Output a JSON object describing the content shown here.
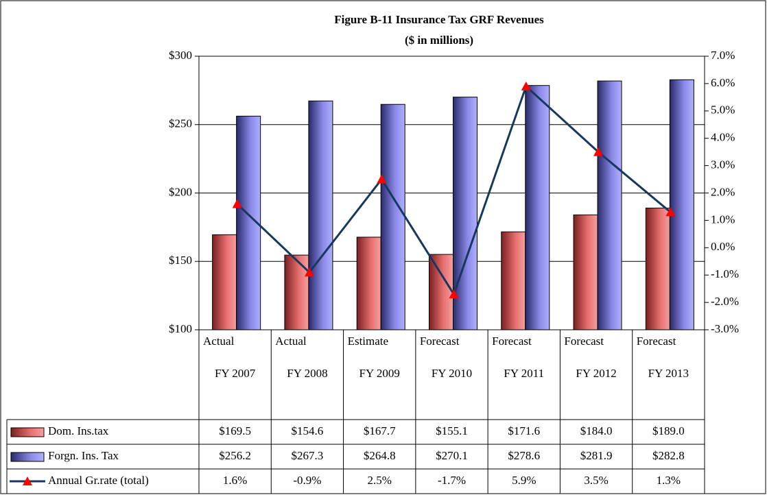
{
  "chart_data": {
    "type": "bar-line",
    "title": "Figure B-11 Insurance Tax GRF Revenues",
    "subtitle": "($ in millions)",
    "categories": [
      [
        "Actual",
        "FY 2007"
      ],
      [
        "Actual",
        "FY 2008"
      ],
      [
        "Estimate",
        "FY 2009"
      ],
      [
        "Forecast",
        "FY 2010"
      ],
      [
        "Forecast",
        "FY 2011"
      ],
      [
        "Forecast",
        "FY 2012"
      ],
      [
        "Forecast",
        "FY 2013"
      ]
    ],
    "series": [
      {
        "name": "Dom. Ins.tax",
        "color": "#e87070",
        "values": [
          169.5,
          154.6,
          167.7,
          155.1,
          171.6,
          184.0,
          189.0
        ],
        "value_labels": [
          "$169.5",
          "$154.6",
          "$167.7",
          "$155.1",
          "$171.6",
          "$184.0",
          "$189.0"
        ]
      },
      {
        "name": "Forgn. Ins. Tax",
        "color": "#8a8ae8",
        "values": [
          256.2,
          267.3,
          264.8,
          270.1,
          278.6,
          281.9,
          282.8
        ],
        "value_labels": [
          "$256.2",
          "$267.3",
          "$264.8",
          "$270.1",
          "$278.6",
          "$281.9",
          "$282.8"
        ]
      },
      {
        "name": "Annual Gr.rate (total)",
        "color": "#17375e",
        "marker_color": "#ff0000",
        "axis": "y2",
        "values": [
          1.6,
          -0.9,
          2.5,
          -1.7,
          5.9,
          3.5,
          1.3
        ],
        "value_labels": [
          "1.6%",
          "-0.9%",
          "2.5%",
          "-1.7%",
          "5.9%",
          "3.5%",
          "1.3%"
        ]
      }
    ],
    "ylim": [
      100,
      300
    ],
    "yticks": [
      {
        "value": 100,
        "label": "$100"
      },
      {
        "value": 150,
        "label": "$150"
      },
      {
        "value": 200,
        "label": "$200"
      },
      {
        "value": 250,
        "label": "$250"
      },
      {
        "value": 300,
        "label": "$300"
      }
    ],
    "y2lim": [
      -3,
      7
    ],
    "y2ticks": [
      {
        "value": -3,
        "label": "-3.0%"
      },
      {
        "value": -2,
        "label": "-2.0%"
      },
      {
        "value": -1,
        "label": "-1.0%"
      },
      {
        "value": 0,
        "label": "0.0%"
      },
      {
        "value": 1,
        "label": "1.0%"
      },
      {
        "value": 2,
        "label": "2.0%"
      },
      {
        "value": 3,
        "label": "3.0%"
      },
      {
        "value": 4,
        "label": "4.0%"
      },
      {
        "value": 5,
        "label": "5.0%"
      },
      {
        "value": 6,
        "label": "6.0%"
      },
      {
        "value": 7,
        "label": "7.0%"
      }
    ],
    "grid": true
  }
}
